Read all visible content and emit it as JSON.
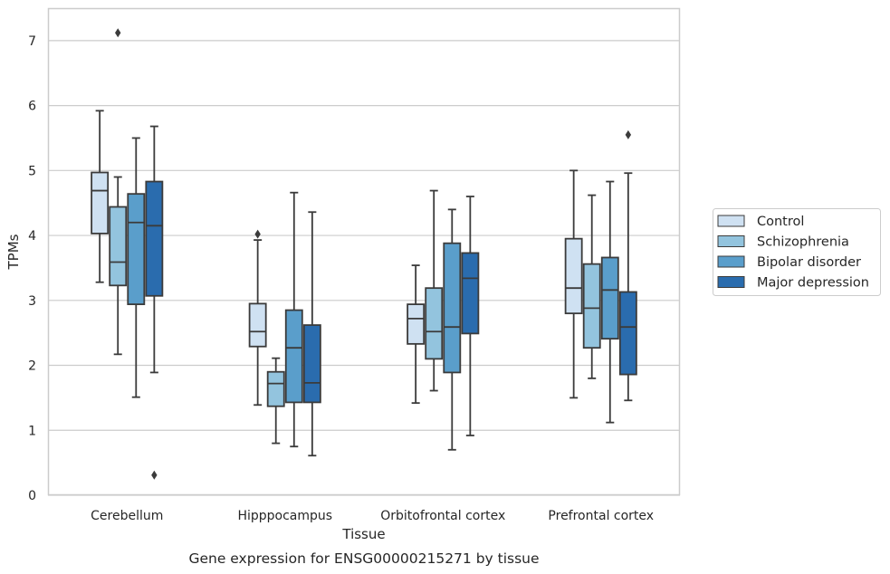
{
  "caption": "Gene expression for ENSG00000215271 by tissue",
  "chart_data": {
    "type": "box",
    "title": "",
    "xlabel": "Tissue",
    "ylabel": "TPMs",
    "ylim": [
      0,
      7.5
    ],
    "yticks": [
      0,
      1,
      2,
      3,
      4,
      5,
      6,
      7
    ],
    "grid": "horizontal",
    "legend_position": "right",
    "categories": [
      "Cerebellum",
      "Hipppocampus",
      "Orbitofrontal cortex",
      "Prefrontal cortex"
    ],
    "series": [
      {
        "name": "Control",
        "color": "#cfe1f2",
        "boxes": [
          {
            "min": 3.28,
            "q1": 4.03,
            "median": 4.69,
            "q3": 4.97,
            "max": 5.92,
            "outliers": []
          },
          {
            "min": 1.39,
            "q1": 2.29,
            "median": 2.52,
            "q3": 2.95,
            "max": 3.93,
            "outliers": [
              4.02
            ]
          },
          {
            "min": 1.42,
            "q1": 2.33,
            "median": 2.72,
            "q3": 2.94,
            "max": 3.54,
            "outliers": []
          },
          {
            "min": 1.5,
            "q1": 2.8,
            "median": 3.19,
            "q3": 3.95,
            "max": 5.0,
            "outliers": []
          }
        ]
      },
      {
        "name": "Schizophrenia",
        "color": "#93c4de",
        "boxes": [
          {
            "min": 2.17,
            "q1": 3.23,
            "median": 3.59,
            "q3": 4.44,
            "max": 4.9,
            "outliers": [
              7.12
            ]
          },
          {
            "min": 0.8,
            "q1": 1.37,
            "median": 1.72,
            "q3": 1.9,
            "max": 2.11,
            "outliers": []
          },
          {
            "min": 1.61,
            "q1": 2.1,
            "median": 2.52,
            "q3": 3.19,
            "max": 4.69,
            "outliers": []
          },
          {
            "min": 1.8,
            "q1": 2.27,
            "median": 2.88,
            "q3": 3.56,
            "max": 4.62,
            "outliers": []
          }
        ]
      },
      {
        "name": "Bipolar disorder",
        "color": "#5a9ecb",
        "boxes": [
          {
            "min": 1.51,
            "q1": 2.94,
            "median": 4.2,
            "q3": 4.64,
            "max": 5.5,
            "outliers": []
          },
          {
            "min": 0.75,
            "q1": 1.43,
            "median": 2.27,
            "q3": 2.85,
            "max": 4.66,
            "outliers": []
          },
          {
            "min": 0.7,
            "q1": 1.89,
            "median": 2.59,
            "q3": 3.88,
            "max": 4.4,
            "outliers": []
          },
          {
            "min": 1.12,
            "q1": 2.41,
            "median": 3.16,
            "q3": 3.66,
            "max": 4.83,
            "outliers": []
          }
        ]
      },
      {
        "name": "Major depression",
        "color": "#2a6cae",
        "boxes": [
          {
            "min": 1.89,
            "q1": 3.07,
            "median": 4.15,
            "q3": 4.83,
            "max": 5.68,
            "outliers": [
              0.31
            ]
          },
          {
            "min": 0.61,
            "q1": 1.43,
            "median": 1.73,
            "q3": 2.62,
            "max": 4.36,
            "outliers": []
          },
          {
            "min": 0.92,
            "q1": 2.49,
            "median": 3.34,
            "q3": 3.73,
            "max": 4.6,
            "outliers": []
          },
          {
            "min": 1.46,
            "q1": 1.86,
            "median": 2.59,
            "q3": 3.13,
            "max": 4.96,
            "outliers": [
              5.55
            ]
          }
        ]
      }
    ]
  }
}
